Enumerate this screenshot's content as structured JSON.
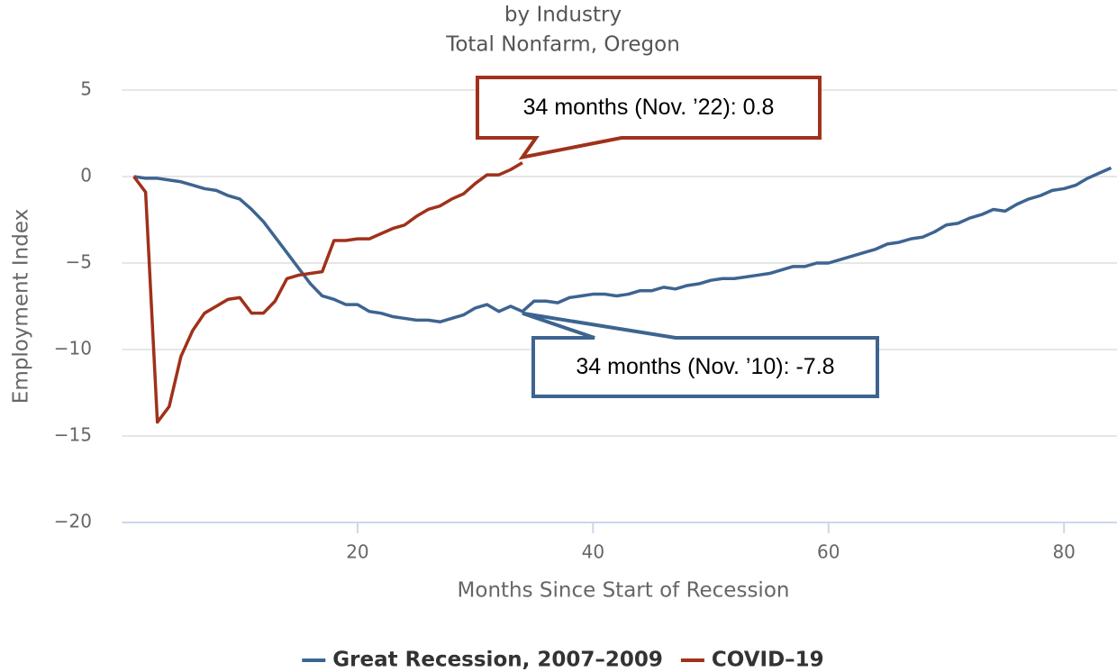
{
  "chart_data": {
    "type": "line",
    "title": "by Industry",
    "subtitle": "Total Nonfarm, Oregon",
    "xlabel": "Months Since Start of Recession",
    "ylabel": "Employment Index",
    "xlim": [
      0,
      84.5
    ],
    "ylim": [
      -20,
      5
    ],
    "xticks": [
      20,
      40,
      60,
      80
    ],
    "yticks": [
      {
        "value": -20,
        "label": "−20"
      },
      {
        "value": -15,
        "label": "−15"
      },
      {
        "value": -10,
        "label": "−10"
      },
      {
        "value": -5,
        "label": "−5"
      },
      0,
      5
    ],
    "grid": true,
    "legend": "bottom",
    "series": [
      {
        "name": "Great Recession, 2007–2009",
        "color": "#3d6491",
        "x": [
          1,
          2,
          3,
          4,
          5,
          6,
          7,
          8,
          9,
          10,
          11,
          12,
          13,
          14,
          15,
          16,
          17,
          18,
          19,
          20,
          21,
          22,
          23,
          24,
          25,
          26,
          27,
          28,
          29,
          30,
          31,
          32,
          33,
          34,
          35,
          36,
          37,
          38,
          39,
          40,
          41,
          42,
          43,
          44,
          45,
          46,
          47,
          48,
          49,
          50,
          51,
          52,
          53,
          54,
          55,
          56,
          57,
          58,
          59,
          60,
          61,
          62,
          63,
          64,
          65,
          66,
          67,
          68,
          69,
          70,
          71,
          72,
          73,
          74,
          75,
          76,
          77,
          78,
          79,
          80,
          81,
          82,
          83,
          84
        ],
        "values": [
          0,
          -0.1,
          -0.1,
          -0.2,
          -0.3,
          -0.5,
          -0.7,
          -0.8,
          -1.1,
          -1.3,
          -1.9,
          -2.6,
          -3.5,
          -4.4,
          -5.3,
          -6.2,
          -6.9,
          -7.1,
          -7.4,
          -7.4,
          -7.8,
          -7.9,
          -8.1,
          -8.2,
          -8.3,
          -8.3,
          -8.4,
          -8.2,
          -8.0,
          -7.6,
          -7.4,
          -7.8,
          -7.5,
          -7.8,
          -7.2,
          -7.2,
          -7.3,
          -7.0,
          -6.9,
          -6.8,
          -6.8,
          -6.9,
          -6.8,
          -6.6,
          -6.6,
          -6.4,
          -6.5,
          -6.3,
          -6.2,
          -6.0,
          -5.9,
          -5.9,
          -5.8,
          -5.7,
          -5.6,
          -5.4,
          -5.2,
          -5.2,
          -5.0,
          -5.0,
          -4.8,
          -4.6,
          -4.4,
          -4.2,
          -3.9,
          -3.8,
          -3.6,
          -3.5,
          -3.2,
          -2.8,
          -2.7,
          -2.4,
          -2.2,
          -1.9,
          -2.0,
          -1.6,
          -1.3,
          -1.1,
          -0.8,
          -0.7,
          -0.5,
          -0.1,
          0.2,
          0.5
        ]
      },
      {
        "name": "COVID–19",
        "color": "#a0311a",
        "x": [
          1,
          2,
          3,
          4,
          5,
          6,
          7,
          8,
          9,
          10,
          11,
          12,
          13,
          14,
          15,
          16,
          17,
          18,
          19,
          20,
          21,
          22,
          23,
          24,
          25,
          26,
          27,
          28,
          29,
          30,
          31,
          32,
          33,
          34
        ],
        "values": [
          0,
          -0.9,
          -14.2,
          -13.3,
          -10.4,
          -8.9,
          -7.9,
          -7.5,
          -7.1,
          -7.0,
          -7.9,
          -7.9,
          -7.2,
          -5.9,
          -5.7,
          -5.6,
          -5.5,
          -3.7,
          -3.7,
          -3.6,
          -3.6,
          -3.3,
          -3.0,
          -2.8,
          -2.3,
          -1.9,
          -1.7,
          -1.3,
          -1.0,
          -0.4,
          0.1,
          0.1,
          0.4,
          0.8
        ]
      }
    ],
    "annotations": [
      {
        "text": "34 months (Nov. ’22): 0.8",
        "x": 34,
        "y": 0.8,
        "color": "#a0311a"
      },
      {
        "text": "34 months (Nov. ’10): -7.8",
        "x": 34,
        "y": -7.8,
        "color": "#3d6491"
      }
    ]
  }
}
